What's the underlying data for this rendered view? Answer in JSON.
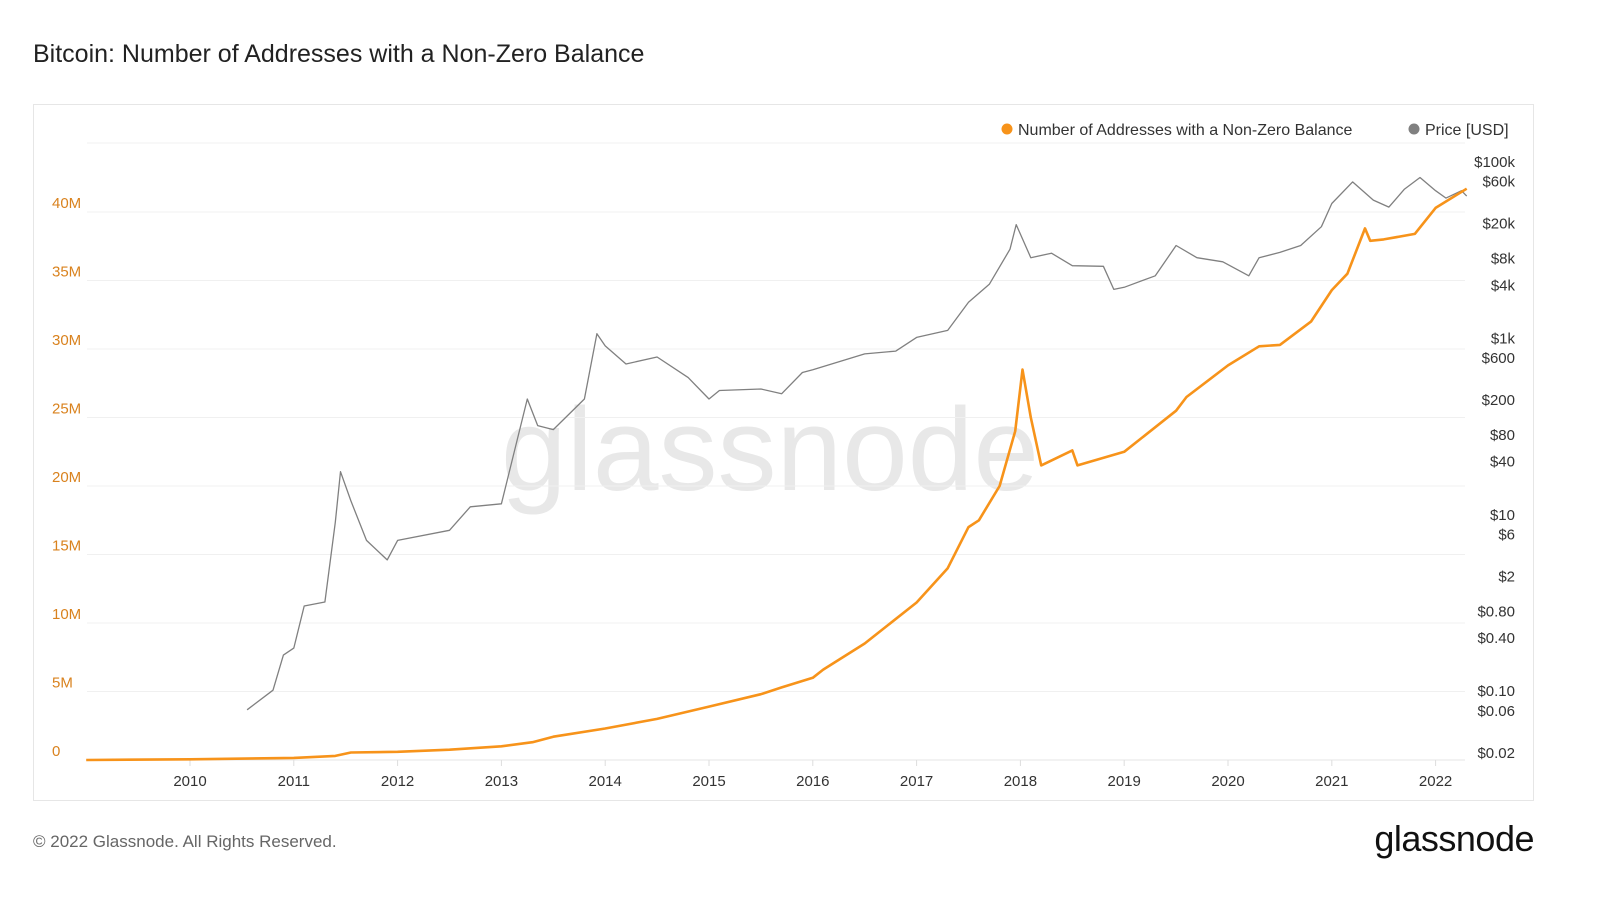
{
  "title": "Bitcoin: Number of Addresses with a Non-Zero Balance",
  "footer": "© 2022 Glassnode. All Rights Reserved.",
  "logo_text": "glassnode",
  "watermark": "glassnode",
  "chart_data": {
    "type": "line",
    "title": "Bitcoin: Number of Addresses with a Non-Zero Balance",
    "legend": {
      "placement": "top-right",
      "entries": [
        "Number of Addresses with a Non-Zero Balance",
        "Price [USD]"
      ]
    },
    "colors": {
      "addresses": "#f7931a",
      "price": "#808080",
      "left_axis_text": "#d9821e"
    },
    "grid": true,
    "x_axis": {
      "range": [
        2009.0,
        2022.3
      ],
      "ticks": [
        "2010",
        "2011",
        "2012",
        "2013",
        "2014",
        "2015",
        "2016",
        "2017",
        "2018",
        "2019",
        "2020",
        "2021",
        "2022"
      ]
    },
    "y_left": {
      "range": [
        0,
        44500000
      ],
      "ticks": [
        0,
        5000000,
        10000000,
        15000000,
        20000000,
        25000000,
        30000000,
        35000000,
        40000000
      ],
      "tick_labels": [
        "0",
        "5M",
        "10M",
        "15M",
        "20M",
        "25M",
        "30M",
        "35M",
        "40M"
      ]
    },
    "y_right": {
      "scale": "log",
      "range": [
        0.02,
        100000
      ],
      "ticks": [
        100000,
        60000,
        20000,
        8000,
        4000,
        1000,
        600,
        200,
        80,
        40,
        10,
        6,
        2,
        0.8,
        0.4,
        0.1,
        0.06,
        0.02
      ],
      "tick_labels": [
        "$100k",
        "$60k",
        "$20k",
        "$8k",
        "$4k",
        "$1k",
        "$600",
        "$200",
        "$80",
        "$40",
        "$10",
        "$6",
        "$2",
        "$0.80",
        "$0.40",
        "$0.10",
        "$0.06",
        "$0.02"
      ]
    },
    "series": [
      {
        "name": "Number of Addresses with a Non-Zero Balance",
        "axis": "left",
        "x": [
          2009.0,
          2010.0,
          2011.0,
          2011.4,
          2011.55,
          2012.0,
          2012.5,
          2013.0,
          2013.3,
          2013.5,
          2014.0,
          2014.5,
          2015.0,
          2015.5,
          2015.7,
          2016.0,
          2016.1,
          2016.5,
          2017.0,
          2017.3,
          2017.5,
          2017.6,
          2017.8,
          2017.95,
          2018.02,
          2018.1,
          2018.2,
          2018.5,
          2018.55,
          2019.0,
          2019.5,
          2019.6,
          2020.0,
          2020.3,
          2020.5,
          2020.8,
          2021.0,
          2021.15,
          2021.32,
          2021.37,
          2021.5,
          2021.8,
          2022.0,
          2022.3
        ],
        "values": [
          0,
          50000,
          150000,
          300000,
          550000,
          600000,
          750000,
          1000000,
          1300000,
          1700000,
          2300000,
          3000000,
          3900000,
          4800000,
          5300000,
          6000000,
          6600000,
          8500000,
          11500000,
          14000000,
          17000000,
          17500000,
          20000000,
          24000000,
          28500000,
          25000000,
          21500000,
          22600000,
          21500000,
          22500000,
          25500000,
          26500000,
          28800000,
          30200000,
          30300000,
          32000000,
          34300000,
          35500000,
          38800000,
          37900000,
          38000000,
          38400000,
          40300000,
          41700000
        ]
      },
      {
        "name": "Price [USD]",
        "axis": "right",
        "x": [
          2010.55,
          2010.8,
          2010.9,
          2011.0,
          2011.1,
          2011.3,
          2011.4,
          2011.45,
          2011.55,
          2011.7,
          2011.9,
          2012.0,
          2012.5,
          2012.7,
          2013.0,
          2013.25,
          2013.35,
          2013.5,
          2013.8,
          2013.92,
          2014.0,
          2014.2,
          2014.5,
          2014.8,
          2015.0,
          2015.1,
          2015.5,
          2015.7,
          2015.9,
          2016.0,
          2016.5,
          2016.8,
          2017.0,
          2017.3,
          2017.5,
          2017.7,
          2017.9,
          2017.96,
          2018.1,
          2018.3,
          2018.5,
          2018.8,
          2018.9,
          2019.0,
          2019.3,
          2019.5,
          2019.7,
          2019.95,
          2020.2,
          2020.3,
          2020.5,
          2020.7,
          2020.9,
          2021.0,
          2021.2,
          2021.4,
          2021.55,
          2021.7,
          2021.85,
          2022.0,
          2022.1,
          2022.25,
          2022.3
        ],
        "values": [
          0.06,
          0.1,
          0.25,
          0.3,
          0.9,
          1,
          8,
          30,
          14,
          5,
          3,
          5,
          6.5,
          12,
          13,
          200,
          100,
          90,
          200,
          1100,
          800,
          500,
          600,
          350,
          200,
          250,
          260,
          230,
          400,
          430,
          650,
          700,
          1000,
          1200,
          2500,
          4000,
          10000,
          19000,
          8000,
          9000,
          6500,
          6400,
          3500,
          3700,
          5000,
          11000,
          8000,
          7200,
          5000,
          8000,
          9200,
          11000,
          18000,
          33000,
          58000,
          36000,
          30000,
          48000,
          65000,
          46000,
          38000,
          46000,
          40000
        ]
      }
    ]
  }
}
